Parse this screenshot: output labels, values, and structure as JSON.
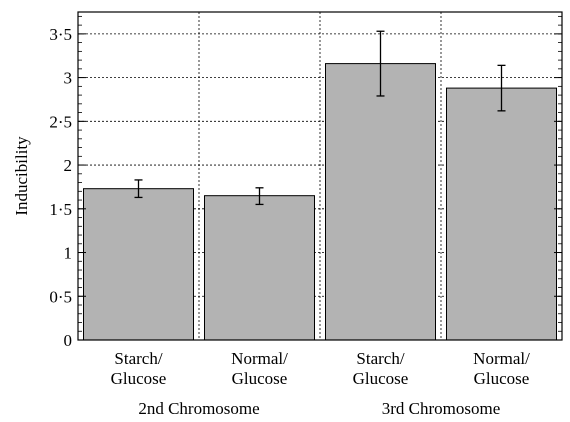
{
  "chart_data": {
    "type": "bar",
    "ylabel": "Inducibility",
    "ylim": [
      0,
      3.75
    ],
    "yticks": [
      0,
      0.5,
      1,
      1.5,
      2,
      2.5,
      3,
      3.5
    ],
    "ytick_labels": [
      "0",
      "0·5",
      "1",
      "1·5",
      "2",
      "2·5",
      "3",
      "3·5"
    ],
    "grid": true,
    "bar_color": "#b3b3b3",
    "categories": [
      {
        "line1": "Starch/",
        "line2": "Glucose",
        "group": "2nd Chromosome"
      },
      {
        "line1": "Normal/",
        "line2": "Glucose",
        "group": "2nd Chromosome"
      },
      {
        "line1": "Starch/",
        "line2": "Glucose",
        "group": "3rd Chromosome"
      },
      {
        "line1": "Normal/",
        "line2": "Glucose",
        "group": "3rd Chromosome"
      }
    ],
    "values": [
      1.73,
      1.65,
      3.16,
      2.88
    ],
    "error_low": [
      1.63,
      1.55,
      2.79,
      2.62
    ],
    "error_high": [
      1.83,
      1.74,
      3.53,
      3.14
    ],
    "groups": [
      "2nd Chromosome",
      "3rd Chromosome"
    ]
  }
}
